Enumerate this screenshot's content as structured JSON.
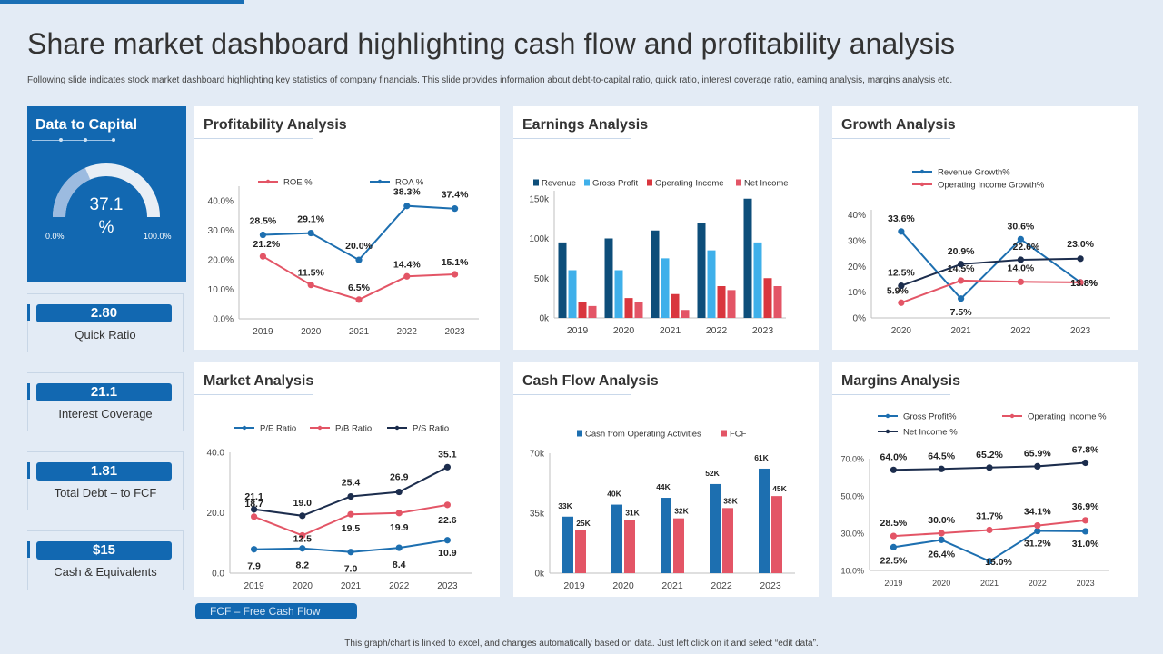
{
  "header": {
    "title": "Share market dashboard highlighting cash flow and profitability analysis",
    "subtitle": "Following slide indicates stock market dashboard highlighting key statistics of company financials. This slide provides information about debt-to-capital ratio, quick ratio, interest coverage ratio, earning analysis, margins analysis etc."
  },
  "left_panel": {
    "title": "Data to Capital",
    "value": "37.1",
    "unit": "%",
    "fill_fraction": 0.371,
    "min_label": "0.0%",
    "max_label": "100.0%"
  },
  "kpis": [
    {
      "value": "2.80",
      "label": "Quick Ratio"
    },
    {
      "value": "21.1",
      "label": "Interest Coverage"
    },
    {
      "value": "1.81",
      "label": "Total Debt – to FCF"
    },
    {
      "value": "$15",
      "label": "Cash & Equivalents"
    }
  ],
  "fcf_note": "FCF – Free Cash Flow",
  "footer": "This graph/chart is linked to excel, and changes automatically based on data. Just left click on it and select “edit data”.",
  "colors": {
    "dark_blue": "#0d4e7a",
    "blue": "#1d6fb0",
    "light_blue": "#3fb0ea",
    "red": "#d9363e",
    "pink_red": "#e35566",
    "navy": "#1c2d4d"
  },
  "chart_data": [
    {
      "id": "profitability",
      "card_title": "Profitability Analysis",
      "type": "line",
      "x": [
        "2019",
        "2020",
        "2021",
        "2022",
        "2023"
      ],
      "ylim": [
        0,
        45
      ],
      "yticks": [
        "0.0%",
        "10.0%",
        "20.0%",
        "30.0%",
        "40.0%"
      ],
      "ytick_values": [
        0,
        10,
        20,
        30,
        40
      ],
      "series": [
        {
          "name": "ROE %",
          "color": "#e35566",
          "values": [
            21.2,
            11.5,
            6.5,
            14.4,
            15.1
          ],
          "labels": [
            "21.2%",
            "11.5%",
            "6.5%",
            "14.4%",
            "15.1%"
          ]
        },
        {
          "name": "ROA %",
          "color": "#1d6fb0",
          "values": [
            28.5,
            29.1,
            20.0,
            38.3,
            37.4
          ],
          "labels": [
            "28.5%",
            "29.1%",
            "20.0%",
            "38.3%",
            "37.4%"
          ]
        }
      ]
    },
    {
      "id": "earnings",
      "card_title": "Earnings Analysis",
      "type": "bar",
      "categories": [
        "2019",
        "2020",
        "2021",
        "2022",
        "2023"
      ],
      "ylim": [
        0,
        160
      ],
      "yticks": [
        "0k",
        "50k",
        "100k",
        "150k"
      ],
      "ytick_values": [
        0,
        50,
        100,
        150
      ],
      "series": [
        {
          "name": "Revenue",
          "color": "#0d4e7a",
          "values": [
            95,
            100,
            110,
            120,
            150
          ]
        },
        {
          "name": "Gross Profit",
          "color": "#3fb0ea",
          "values": [
            60,
            60,
            75,
            85,
            95
          ]
        },
        {
          "name": "Operating Income",
          "color": "#d9363e",
          "values": [
            20,
            25,
            30,
            40,
            50
          ]
        },
        {
          "name": "Net Income",
          "color": "#e35566",
          "values": [
            15,
            20,
            10,
            35,
            40
          ]
        }
      ]
    },
    {
      "id": "growth",
      "card_title": "Growth Analysis",
      "type": "line",
      "x": [
        "2020",
        "2021",
        "2022",
        "2023"
      ],
      "ylim": [
        0,
        42
      ],
      "yticks": [
        "0%",
        "10%",
        "20%",
        "30%",
        "40%"
      ],
      "ytick_values": [
        0,
        10,
        20,
        30,
        40
      ],
      "series": [
        {
          "name": "Revenue Growth%",
          "color": "#1d6fb0",
          "values": [
            33.6,
            7.5,
            30.6,
            13.8
          ],
          "labels": [
            "33.6%",
            "7.5%",
            "30.6%",
            "13.8%"
          ]
        },
        {
          "name": "Operating Income Growth%",
          "color": "#e35566",
          "values": [
            5.9,
            14.5,
            14.0,
            13.8
          ],
          "labels": [
            "5.9%",
            "14.5%",
            "14.0%",
            "13.8%"
          ]
        },
        {
          "name": "",
          "color": "#1c2d4d",
          "values": [
            12.5,
            20.9,
            22.6,
            23.0
          ],
          "labels": [
            "12.5%",
            "20.9%",
            "22.6%",
            "23.0%"
          ]
        }
      ]
    },
    {
      "id": "market",
      "card_title": "Market Analysis",
      "type": "line",
      "x": [
        "2019",
        "2020",
        "2021",
        "2022",
        "2023"
      ],
      "ylim": [
        0,
        40
      ],
      "yticks": [
        "0.0",
        "20.0",
        "40.0"
      ],
      "ytick_values": [
        0,
        20,
        40
      ],
      "series": [
        {
          "name": "P/E Ratio",
          "color": "#1d6fb0",
          "values": [
            7.9,
            8.2,
            7.0,
            8.4,
            10.9
          ],
          "labels": [
            "7.9",
            "8.2",
            "7.0",
            "8.4",
            "10.9"
          ]
        },
        {
          "name": "P/B Ratio",
          "color": "#e35566",
          "values": [
            18.7,
            12.5,
            19.5,
            19.9,
            22.6
          ],
          "labels": [
            "18.7",
            "12.5",
            "19.5",
            "19.9",
            "22.6"
          ]
        },
        {
          "name": "P/S Ratio",
          "color": "#1c2d4d",
          "values": [
            21.1,
            19.0,
            25.4,
            26.9,
            35.1
          ],
          "labels": [
            "21.1",
            "19.0",
            "25.4",
            "26.9",
            "35.1"
          ]
        }
      ]
    },
    {
      "id": "cashflow",
      "card_title": "Cash Flow Analysis",
      "type": "bar",
      "categories": [
        "2019",
        "2020",
        "2021",
        "2022",
        "2023"
      ],
      "ylim": [
        0,
        70
      ],
      "yticks": [
        "0k",
        "35k",
        "70k"
      ],
      "ytick_values": [
        0,
        35,
        70
      ],
      "series": [
        {
          "name": "Cash from Operating Activities",
          "color": "#1d6fb0",
          "values": [
            33,
            40,
            44,
            52,
            61
          ],
          "labels": [
            "33K",
            "40K",
            "44K",
            "52K",
            "61K"
          ]
        },
        {
          "name": "FCF",
          "color": "#e35566",
          "values": [
            25,
            31,
            32,
            38,
            45
          ],
          "labels": [
            "25K",
            "31K",
            "32K",
            "38K",
            "45K"
          ]
        }
      ]
    },
    {
      "id": "margins",
      "card_title": "Margins Analysis",
      "type": "line",
      "x": [
        "2019",
        "2020",
        "2021",
        "2022",
        "2023"
      ],
      "ylim": [
        10,
        70
      ],
      "yticks": [
        "10.0%",
        "30.0%",
        "50.0%",
        "70.0%"
      ],
      "ytick_values": [
        10,
        30,
        50,
        70
      ],
      "series": [
        {
          "name": "Gross Profit%",
          "color": "#1d6fb0",
          "values": [
            22.5,
            26.4,
            15.0,
            31.2,
            31.0
          ],
          "labels": [
            "22.5%",
            "26.4%",
            "15.0%",
            "31.2%",
            "31.0%"
          ]
        },
        {
          "name": "Operating Income %",
          "color": "#e35566",
          "values": [
            28.5,
            30.0,
            31.7,
            34.1,
            36.9
          ],
          "labels": [
            "28.5%",
            "30.0%",
            "31.7%",
            "34.1%",
            "36.9%"
          ]
        },
        {
          "name": "Net Income %",
          "color": "#1c2d4d",
          "values": [
            64.0,
            64.5,
            65.2,
            65.9,
            67.8
          ],
          "labels": [
            "64.0%",
            "64.5%",
            "65.2%",
            "65.9%",
            "67.8%"
          ]
        }
      ]
    }
  ]
}
